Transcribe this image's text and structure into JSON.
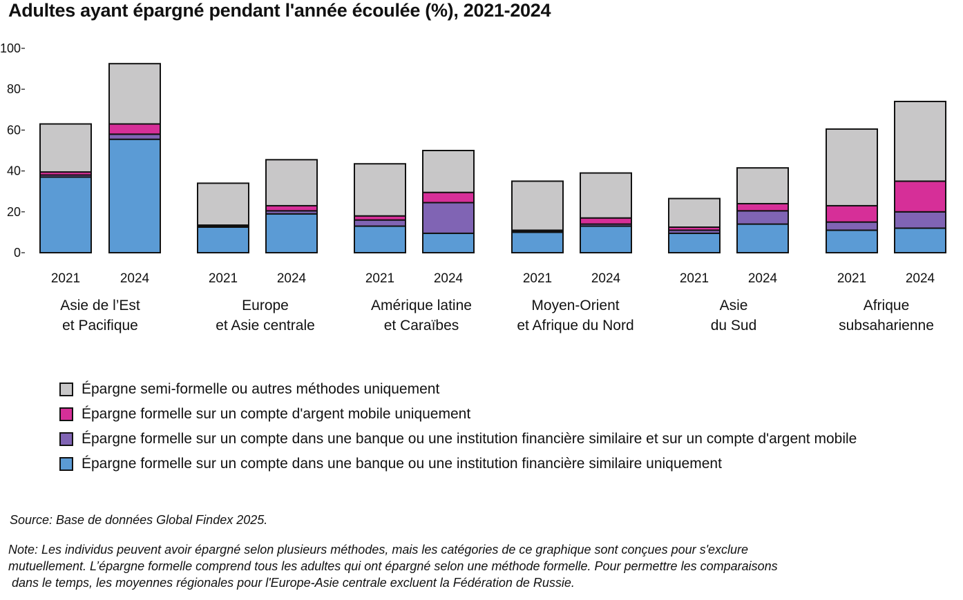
{
  "chart_data": {
    "type": "bar",
    "stacked": true,
    "title": "Adultes ayant épargné pendant l'année écoulée (%), 2021-2024",
    "ylim": [
      0,
      100
    ],
    "yticks": [
      "100",
      "80",
      "60",
      "40",
      "20",
      "0"
    ],
    "ytick_values": [
      100,
      80,
      60,
      40,
      20,
      0
    ],
    "regions": [
      {
        "label_lines": [
          "Asie de l’Est",
          "et Pacifique"
        ],
        "bars": [
          {
            "year": "2021",
            "values": [
              37,
              1,
              1.5,
              23.5
            ]
          },
          {
            "year": "2024",
            "values": [
              55.5,
              2.5,
              5,
              29.5
            ]
          }
        ]
      },
      {
        "label_lines": [
          "Europe",
          "et Asie centrale"
        ],
        "bars": [
          {
            "year": "2021",
            "values": [
              12.5,
              0.5,
              0.5,
              20.5
            ]
          },
          {
            "year": "2024",
            "values": [
              19,
              1.5,
              2.5,
              22.5
            ]
          }
        ]
      },
      {
        "label_lines": [
          "Amérique latine",
          "et Caraïbes"
        ],
        "bars": [
          {
            "year": "2021",
            "values": [
              13,
              3,
              2,
              25.5
            ]
          },
          {
            "year": "2024",
            "values": [
              9.5,
              15,
              5,
              20.5
            ]
          }
        ]
      },
      {
        "label_lines": [
          "Moyen-Orient",
          "et Afrique du Nord"
        ],
        "bars": [
          {
            "year": "2021",
            "values": [
              10,
              0.5,
              0.5,
              24
            ]
          },
          {
            "year": "2024",
            "values": [
              13,
              1,
              3,
              22
            ]
          }
        ]
      },
      {
        "label_lines": [
          "Asie",
          "du Sud"
        ],
        "bars": [
          {
            "year": "2021",
            "values": [
              9.5,
              1.5,
              1.5,
              14
            ]
          },
          {
            "year": "2024",
            "values": [
              14,
              6.5,
              3.5,
              17.5
            ]
          }
        ]
      },
      {
        "label_lines": [
          "Afrique",
          "subsaharienne"
        ],
        "bars": [
          {
            "year": "2021",
            "values": [
              11,
              4,
              8,
              37.5
            ]
          },
          {
            "year": "2024",
            "values": [
              12,
              8,
              15,
              39
            ]
          }
        ]
      }
    ],
    "series": [
      {
        "name": "Épargne formelle sur un compte dans une banque ou une institution financière similaire uniquement",
        "color": "#5b9bd5"
      },
      {
        "name": "Épargne formelle sur un compte dans une banque ou une institution financière similaire et sur un compte d'argent mobile",
        "color": "#8064b4"
      },
      {
        "name": "Épargne formelle sur un compte d'argent mobile uniquement",
        "color": "#d62f98"
      },
      {
        "name": "Épargne semi-formelle ou autres méthodes uniquement",
        "color": "#c8c7c8"
      }
    ],
    "legend_order": [
      3,
      2,
      1,
      0
    ]
  },
  "legend": [
    {
      "label": "Épargne semi-formelle ou autres méthodes uniquement",
      "color": "#c8c7c8"
    },
    {
      "label": "Épargne formelle sur un compte d'argent mobile uniquement",
      "color": "#d62f98"
    },
    {
      "label": "Épargne formelle sur un compte dans une banque ou une institution financière similaire et sur un compte d'argent mobile",
      "color": "#8064b4"
    },
    {
      "label": "Épargne formelle sur un compte dans une banque ou une institution financière similaire uniquement",
      "color": "#5b9bd5"
    }
  ],
  "source": "Source: Base de données Global Findex 2025.",
  "note_lines": [
    "Note: Les individus peuvent avoir épargné selon plusieurs méthodes, mais les catégories de ce graphique sont conçues pour s'exclure",
    "mutuellement. L’épargne formelle comprend tous les adultes qui ont épargné selon une méthode formelle. Pour permettre les comparaisons",
    " dans le temps, les moyennes régionales pour l'Europe-Asie centrale excluent la Fédération de Russie."
  ]
}
